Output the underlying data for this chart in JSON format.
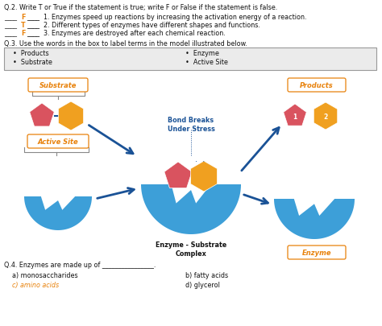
{
  "bg_color": "#ffffff",
  "q2_title": "Q.2. Write T or True if the statement is true; write F or False if the statement is false.",
  "q2_lines": [
    {
      "answer": "F",
      "text": "1. Enzymes speed up reactions by increasing the activation energy of a reaction."
    },
    {
      "answer": "T",
      "text": "2. Different types of enzymes have different shapes and functions."
    },
    {
      "answer": "F",
      "text": "3. Enzymes are destroyed after each chemical reaction."
    }
  ],
  "q3_title": "Q.3. Use the words in the box to label terms in the model illustrated below.",
  "box_items_left": [
    "Products",
    "Substrate"
  ],
  "box_items_right": [
    "Enzyme",
    "Active Site"
  ],
  "label_substrate": "Substrate",
  "label_products": "Products",
  "label_active_site": "Active Site",
  "label_enzyme": "Enzyme",
  "label_bond_breaks": "Bond Breaks\nUnder Stress",
  "label_complex": "Enzyme - Substrate\nComplex",
  "q4_title": "Q.4. Enzymes are made up of ________________.",
  "q4_a": "a) monosaccharides",
  "q4_b": "b) fatty acids",
  "q4_c": "c) amino acids",
  "q4_d": "d) glycerol",
  "orange_color": "#e8820c",
  "blue_dark": "#1a5296",
  "enzyme_blue": "#3d9fd8",
  "enzyme_blue_dark": "#2b80b8",
  "pink_color": "#d9535f",
  "yellow_color": "#f0a020",
  "text_color": "#222222",
  "gray_bg": "#e8e8e8"
}
